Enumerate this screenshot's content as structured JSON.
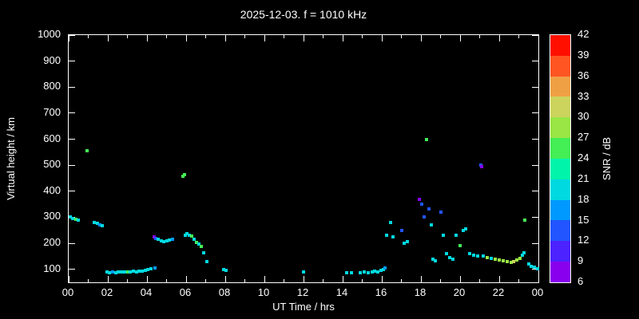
{
  "chart_data": {
    "type": "scatter",
    "title": "2025-12-03. f = 1010 kHz",
    "xlabel": "UT Time / hrs",
    "ylabel": "Virtual height / km",
    "xlim": [
      0,
      24
    ],
    "ylim": [
      50,
      1000
    ],
    "x_tick_values": [
      0,
      2,
      4,
      6,
      8,
      10,
      12,
      14,
      16,
      18,
      20,
      22,
      24
    ],
    "x_tick_labels": [
      "00",
      "02",
      "04",
      "06",
      "08",
      "10",
      "12",
      "14",
      "16",
      "18",
      "20",
      "22",
      "00"
    ],
    "y_tick_values": [
      100,
      200,
      300,
      400,
      500,
      600,
      700,
      800,
      900,
      1000
    ],
    "y_tick_labels": [
      "100",
      "200",
      "300",
      "400",
      "500",
      "600",
      "700",
      "800",
      "900",
      "1000"
    ],
    "background": "#000000",
    "axis_color": "#ffffff",
    "grid": false,
    "colorbar": {
      "label": "SNR / dB",
      "min": 6,
      "max": 42,
      "tick_values": [
        6,
        9,
        12,
        15,
        18,
        21,
        24,
        27,
        30,
        33,
        36,
        39,
        42
      ],
      "colors": [
        "#8800ee",
        "#4c22ff",
        "#2255ff",
        "#0099ff",
        "#00d9e0",
        "#00f5aa",
        "#44ee55",
        "#99e644",
        "#ccd45e",
        "#f0a044",
        "#ff5522",
        "#ff0f00"
      ]
    },
    "points": [
      [
        0.1,
        300,
        19
      ],
      [
        0.22,
        296,
        19
      ],
      [
        0.35,
        292,
        25
      ],
      [
        0.5,
        290,
        19
      ],
      [
        0.95,
        555,
        25
      ],
      [
        1.3,
        281,
        19
      ],
      [
        1.45,
        276,
        19
      ],
      [
        1.6,
        271,
        16
      ],
      [
        1.72,
        268,
        19
      ],
      [
        1.95,
        90,
        19
      ],
      [
        2.1,
        88,
        19
      ],
      [
        2.25,
        90,
        16
      ],
      [
        2.4,
        88,
        19
      ],
      [
        2.55,
        90,
        19
      ],
      [
        2.7,
        89,
        19
      ],
      [
        2.85,
        91,
        19
      ],
      [
        3.0,
        90,
        25
      ],
      [
        3.15,
        89,
        19
      ],
      [
        3.3,
        93,
        19
      ],
      [
        3.45,
        91,
        19
      ],
      [
        3.6,
        93,
        19
      ],
      [
        3.75,
        94,
        19
      ],
      [
        3.9,
        96,
        19
      ],
      [
        4.05,
        99,
        19
      ],
      [
        4.2,
        101,
        19
      ],
      [
        4.4,
        104,
        16
      ],
      [
        4.35,
        224,
        7
      ],
      [
        4.45,
        219,
        13
      ],
      [
        4.58,
        214,
        19
      ],
      [
        4.72,
        209,
        19
      ],
      [
        4.86,
        206,
        19
      ],
      [
        5.0,
        208,
        19
      ],
      [
        5.15,
        211,
        19
      ],
      [
        5.3,
        214,
        16
      ],
      [
        5.82,
        458,
        25
      ],
      [
        5.92,
        465,
        25
      ],
      [
        5.95,
        230,
        19
      ],
      [
        6.05,
        236,
        19
      ],
      [
        6.18,
        232,
        19
      ],
      [
        6.3,
        227,
        25
      ],
      [
        6.42,
        214,
        19
      ],
      [
        6.55,
        204,
        25
      ],
      [
        6.65,
        197,
        19
      ],
      [
        6.78,
        189,
        25
      ],
      [
        6.9,
        163,
        19
      ],
      [
        7.05,
        130,
        19
      ],
      [
        7.9,
        100,
        19
      ],
      [
        8.05,
        97,
        19
      ],
      [
        12.0,
        90,
        19
      ],
      [
        14.2,
        88,
        19
      ],
      [
        14.45,
        86,
        19
      ],
      [
        14.9,
        88,
        19
      ],
      [
        15.1,
        89,
        19
      ],
      [
        15.3,
        88,
        19
      ],
      [
        15.5,
        90,
        19
      ],
      [
        15.65,
        92,
        19
      ],
      [
        15.8,
        90,
        19
      ],
      [
        15.95,
        95,
        19
      ],
      [
        16.08,
        100,
        19
      ],
      [
        16.18,
        104,
        16
      ],
      [
        16.25,
        232,
        19
      ],
      [
        16.45,
        280,
        19
      ],
      [
        16.58,
        224,
        19
      ],
      [
        17.0,
        250,
        13
      ],
      [
        17.15,
        200,
        19
      ],
      [
        17.3,
        206,
        19
      ],
      [
        17.9,
        370,
        7
      ],
      [
        18.05,
        350,
        13
      ],
      [
        18.15,
        300,
        13
      ],
      [
        18.3,
        600,
        25
      ],
      [
        18.42,
        332,
        13
      ],
      [
        18.52,
        270,
        19
      ],
      [
        18.62,
        140,
        19
      ],
      [
        18.75,
        134,
        19
      ],
      [
        19.0,
        320,
        13
      ],
      [
        19.15,
        230,
        19
      ],
      [
        19.3,
        160,
        19
      ],
      [
        19.48,
        146,
        19
      ],
      [
        19.62,
        140,
        19
      ],
      [
        19.8,
        230,
        19
      ],
      [
        20.0,
        190,
        25
      ],
      [
        20.15,
        250,
        19
      ],
      [
        20.3,
        256,
        19
      ],
      [
        20.5,
        160,
        19
      ],
      [
        20.7,
        155,
        19
      ],
      [
        20.9,
        150,
        19
      ],
      [
        21.05,
        500,
        13
      ],
      [
        21.12,
        493,
        7
      ],
      [
        21.2,
        150,
        19
      ],
      [
        21.4,
        146,
        28
      ],
      [
        21.6,
        141,
        19
      ],
      [
        21.8,
        138,
        28
      ],
      [
        22.0,
        135,
        28
      ],
      [
        22.2,
        132,
        28
      ],
      [
        22.4,
        130,
        28
      ],
      [
        22.6,
        128,
        28
      ],
      [
        22.75,
        131,
        31
      ],
      [
        22.9,
        135,
        28
      ],
      [
        23.05,
        141,
        28
      ],
      [
        23.18,
        155,
        19
      ],
      [
        23.28,
        162,
        19
      ],
      [
        23.3,
        290,
        25
      ],
      [
        23.5,
        120,
        19
      ],
      [
        23.65,
        112,
        19
      ],
      [
        23.8,
        107,
        19
      ],
      [
        23.95,
        102,
        19
      ]
    ]
  }
}
